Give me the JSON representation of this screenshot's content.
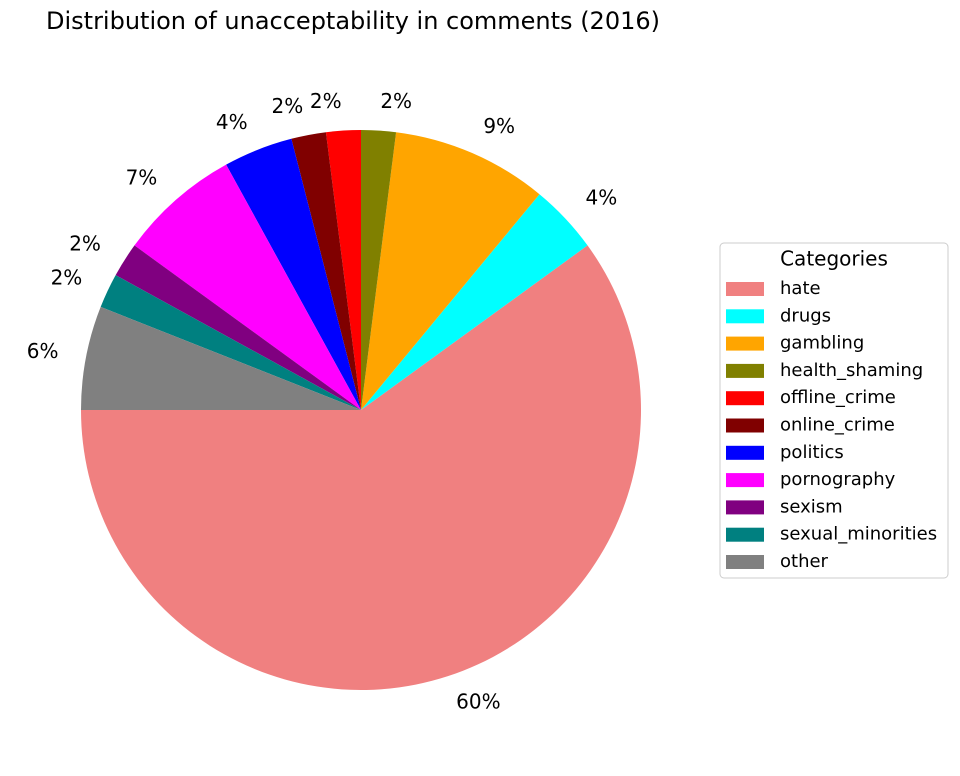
{
  "chart_data": {
    "type": "pie",
    "title": "Distribution of unacceptability in comments (2016)",
    "legend_title": "Categories",
    "legend": "right",
    "start_angle": 180,
    "categories": [
      "hate",
      "drugs",
      "gambling",
      "health_shaming",
      "offline_crime",
      "online_crime",
      "politics",
      "pornography",
      "sexism",
      "sexual_minorities",
      "other"
    ],
    "values": [
      60,
      4,
      9,
      2,
      2,
      2,
      4,
      7,
      2,
      2,
      6
    ],
    "value_labels": [
      "60%",
      "4%",
      "9%",
      "2%",
      "2%",
      "2%",
      "4%",
      "7%",
      "2%",
      "2%",
      "6%"
    ],
    "colors": [
      "#f08080",
      "#00ffff",
      "#ffa500",
      "#808000",
      "#ff0000",
      "#800000",
      "#0000ff",
      "#ff00ff",
      "#800080",
      "#008080",
      "#808080"
    ]
  }
}
